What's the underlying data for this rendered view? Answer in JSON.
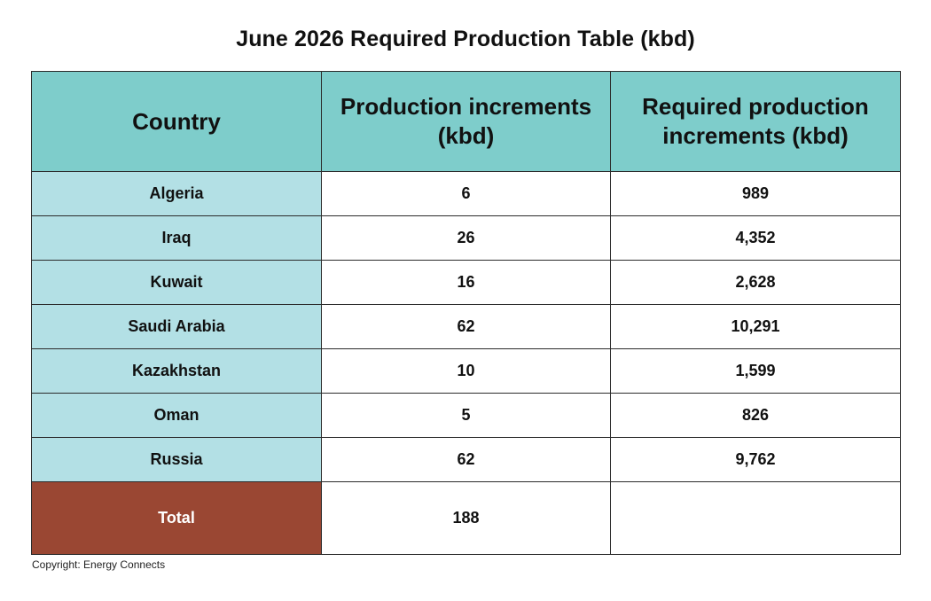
{
  "chart_data": {
    "type": "table",
    "title": "June 2026 Required Production Table (kbd)",
    "columns": [
      "Country",
      "Production increments (kbd)",
      "Required production increments (kbd)"
    ],
    "rows": [
      {
        "country": "Algeria",
        "production": "6",
        "required": "989"
      },
      {
        "country": "Iraq",
        "production": "26",
        "required": "4,352"
      },
      {
        "country": "Kuwait",
        "production": "16",
        "required": "2,628"
      },
      {
        "country": "Saudi Arabia",
        "production": "62",
        "required": "10,291"
      },
      {
        "country": "Kazakhstan",
        "production": "10",
        "required": "1,599"
      },
      {
        "country": "Oman",
        "production": "5",
        "required": "826"
      },
      {
        "country": "Russia",
        "production": "62",
        "required": "9,762"
      }
    ],
    "total": {
      "label": "Total",
      "production": "188",
      "required": ""
    }
  },
  "footer": {
    "copyright": "Copyright: Energy Connects"
  },
  "colors": {
    "header_bg": "#7ecdcb",
    "country_cell_bg": "#b3e0e5",
    "total_cell_bg": "#9a4733"
  }
}
